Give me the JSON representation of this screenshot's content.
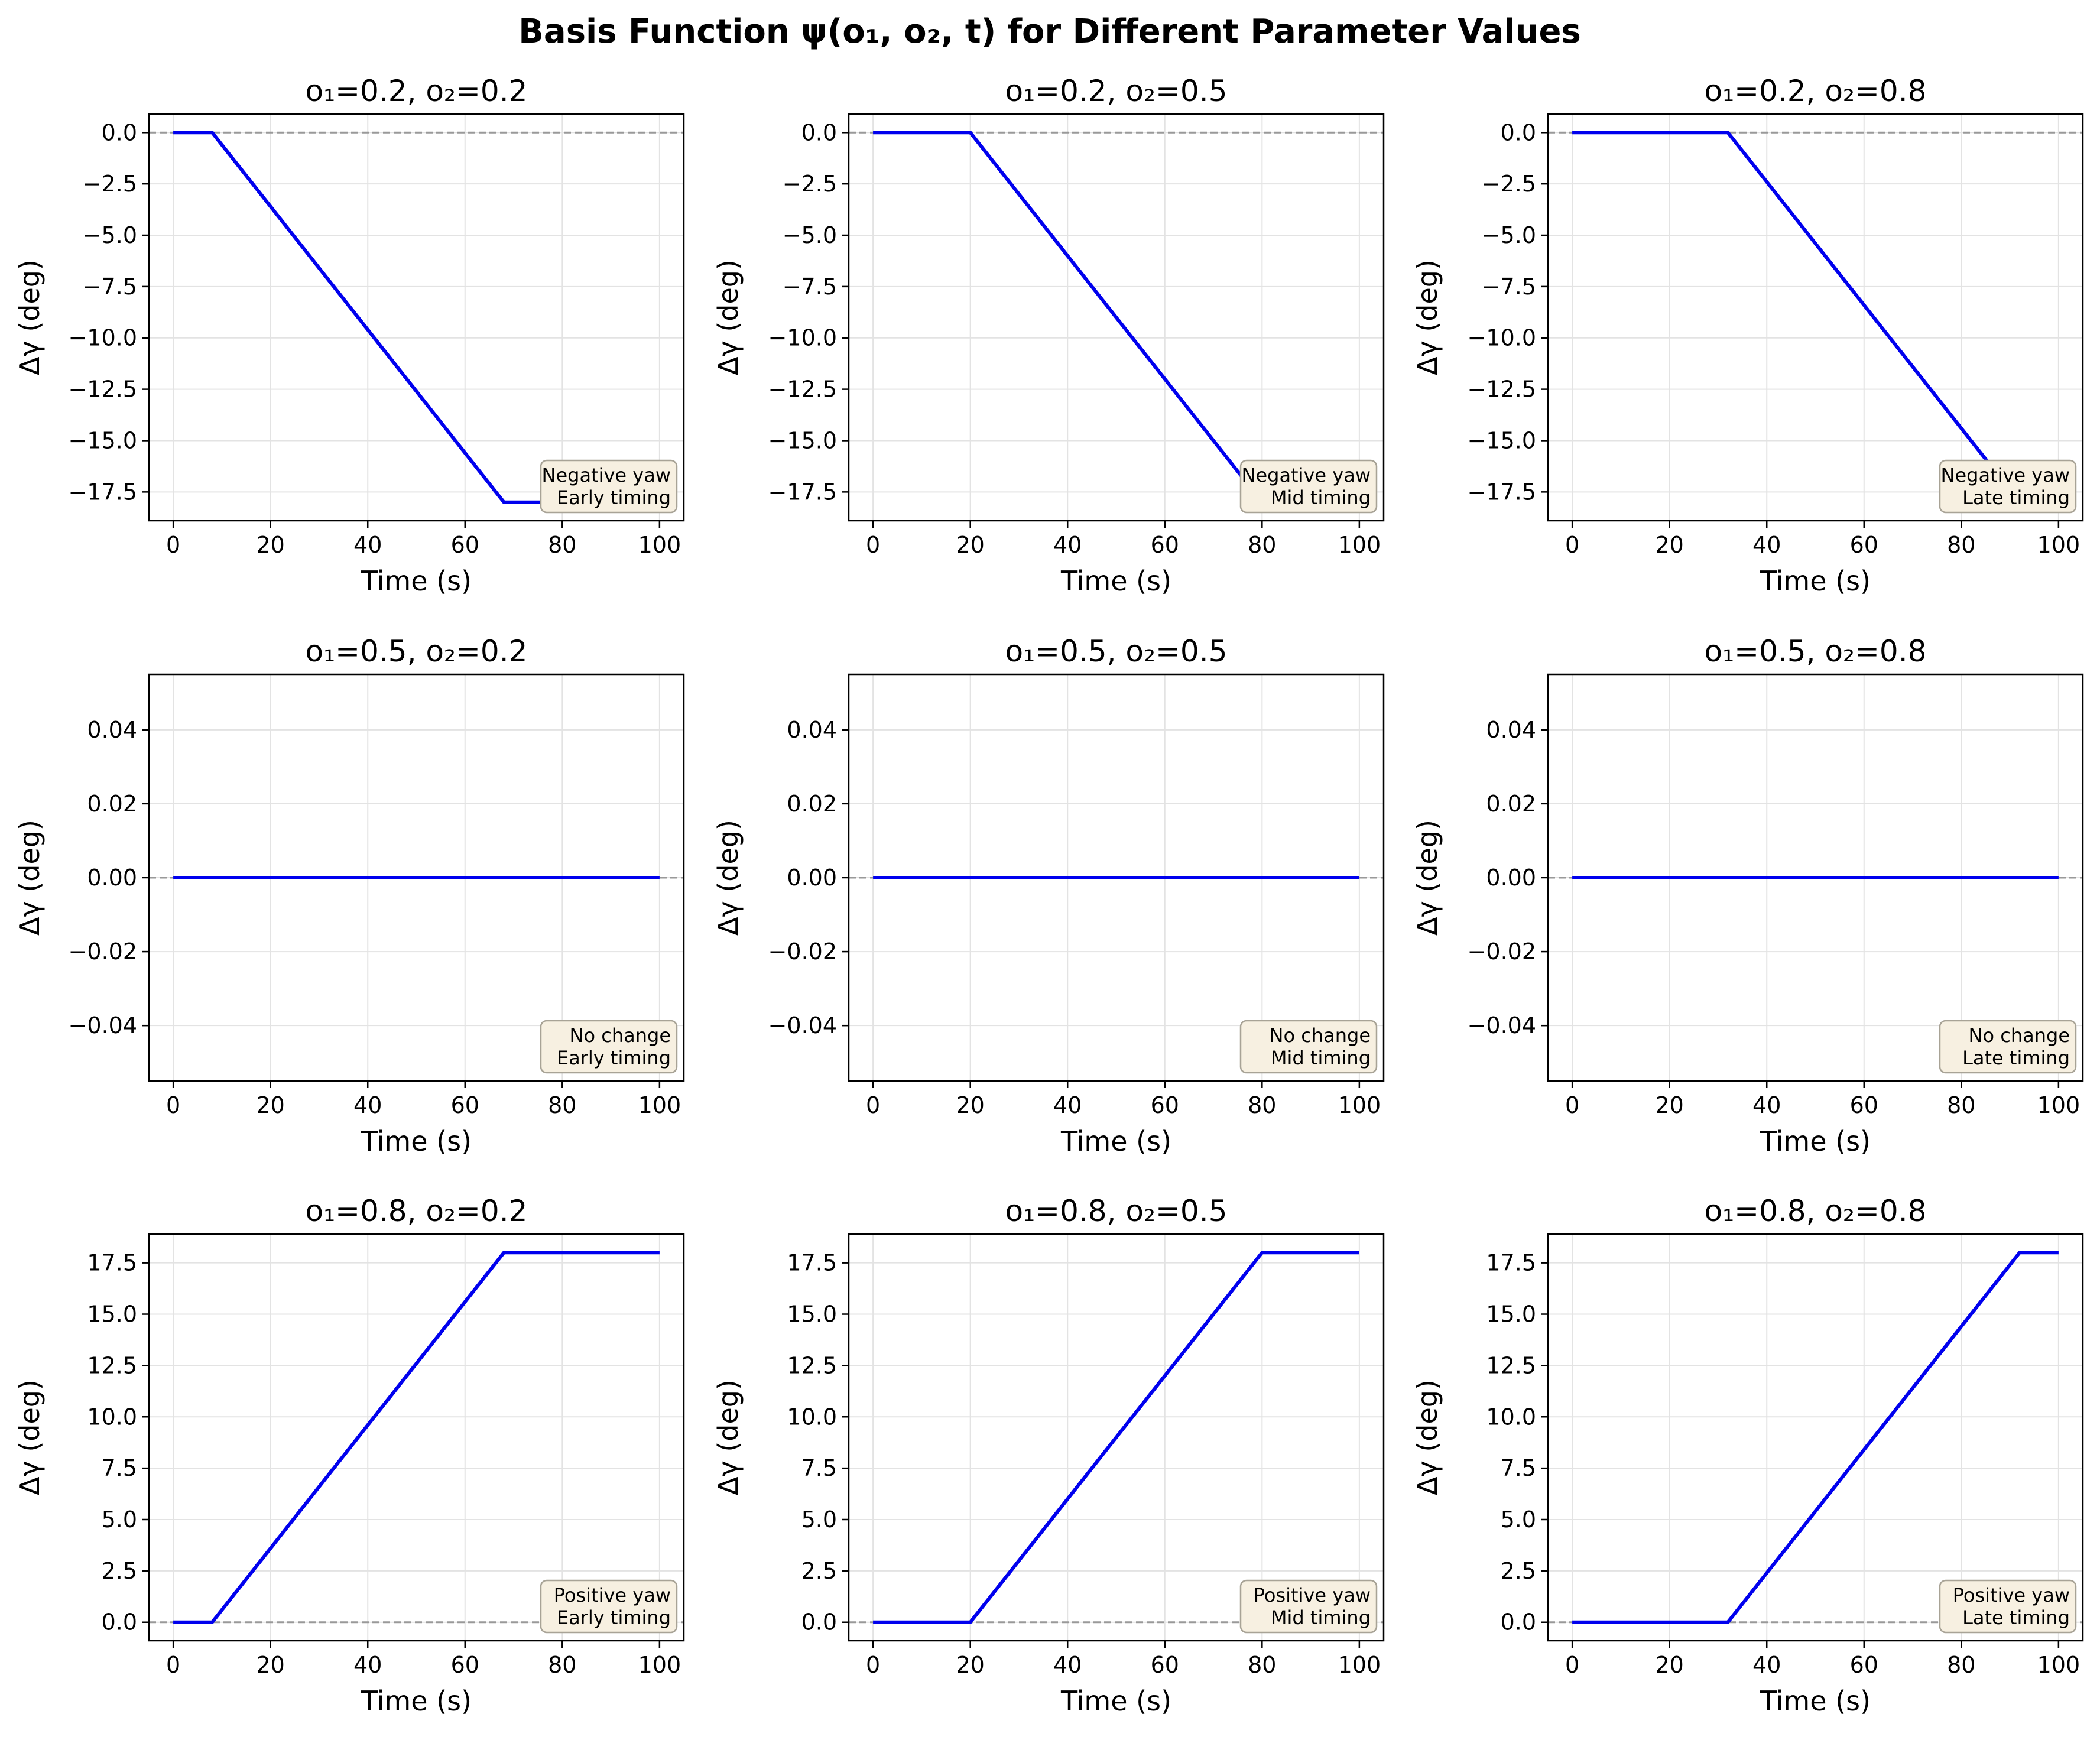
{
  "figure": {
    "title": "Basis Function ψ(o₁, o₂, t) for Different Parameter Values"
  },
  "style": {
    "line_color": "#0000ee",
    "reference_line_color": "#999999",
    "grid_color": "#e3e3e3",
    "annotation_fill": "#f7f0e1",
    "annotation_border": "#a8a396"
  },
  "chart_data": [
    {
      "type": "line",
      "title": "o₁=0.2, o₂=0.2",
      "xlabel": "Time (s)",
      "ylabel": "Δγ (deg)",
      "xlim": [
        -5,
        105
      ],
      "ylim": [
        -18.9,
        0.9
      ],
      "xticks": [
        0,
        20,
        40,
        60,
        80,
        100
      ],
      "xtick_labels": [
        "0",
        "20",
        "40",
        "60",
        "80",
        "100"
      ],
      "yticks": [
        0,
        -2.5,
        -5,
        -7.5,
        -10,
        -12.5,
        -15,
        -17.5
      ],
      "ytick_labels": [
        "0.0",
        "−2.5",
        "−5.0",
        "−7.5",
        "−10.0",
        "−12.5",
        "−15.0",
        "−17.5"
      ],
      "grid": true,
      "reference_line": 0,
      "series": [
        {
          "x": [
            0,
            8,
            68,
            100
          ],
          "y": [
            0,
            0,
            -18,
            -18
          ]
        }
      ],
      "annotation": [
        "Negative yaw",
        "Early timing"
      ]
    },
    {
      "type": "line",
      "title": "o₁=0.2, o₂=0.5",
      "xlabel": "Time (s)",
      "ylabel": "Δγ (deg)",
      "xlim": [
        -5,
        105
      ],
      "ylim": [
        -18.9,
        0.9
      ],
      "xticks": [
        0,
        20,
        40,
        60,
        80,
        100
      ],
      "xtick_labels": [
        "0",
        "20",
        "40",
        "60",
        "80",
        "100"
      ],
      "yticks": [
        0,
        -2.5,
        -5,
        -7.5,
        -10,
        -12.5,
        -15,
        -17.5
      ],
      "ytick_labels": [
        "0.0",
        "−2.5",
        "−5.0",
        "−7.5",
        "−10.0",
        "−12.5",
        "−15.0",
        "−17.5"
      ],
      "grid": true,
      "reference_line": 0,
      "series": [
        {
          "x": [
            0,
            20,
            80,
            100
          ],
          "y": [
            0,
            0,
            -18,
            -18
          ]
        }
      ],
      "annotation": [
        "Negative yaw",
        "Mid timing"
      ]
    },
    {
      "type": "line",
      "title": "o₁=0.2, o₂=0.8",
      "xlabel": "Time (s)",
      "ylabel": "Δγ (deg)",
      "xlim": [
        -5,
        105
      ],
      "ylim": [
        -18.9,
        0.9
      ],
      "xticks": [
        0,
        20,
        40,
        60,
        80,
        100
      ],
      "xtick_labels": [
        "0",
        "20",
        "40",
        "60",
        "80",
        "100"
      ],
      "yticks": [
        0,
        -2.5,
        -5,
        -7.5,
        -10,
        -12.5,
        -15,
        -17.5
      ],
      "ytick_labels": [
        "0.0",
        "−2.5",
        "−5.0",
        "−7.5",
        "−10.0",
        "−12.5",
        "−15.0",
        "−17.5"
      ],
      "grid": true,
      "reference_line": 0,
      "series": [
        {
          "x": [
            0,
            32,
            92,
            100
          ],
          "y": [
            0,
            0,
            -18,
            -18
          ]
        }
      ],
      "annotation": [
        "Negative yaw",
        "Late timing"
      ]
    },
    {
      "type": "line",
      "title": "o₁=0.5, o₂=0.2",
      "xlabel": "Time (s)",
      "ylabel": "Δγ (deg)",
      "xlim": [
        -5,
        105
      ],
      "ylim": [
        -0.055,
        0.055
      ],
      "xticks": [
        0,
        20,
        40,
        60,
        80,
        100
      ],
      "xtick_labels": [
        "0",
        "20",
        "40",
        "60",
        "80",
        "100"
      ],
      "yticks": [
        0.04,
        0.02,
        0,
        -0.02,
        -0.04
      ],
      "ytick_labels": [
        "0.04",
        "0.02",
        "0.00",
        "−0.02",
        "−0.04"
      ],
      "grid": true,
      "reference_line": 0,
      "series": [
        {
          "x": [
            0,
            100
          ],
          "y": [
            0,
            0
          ]
        }
      ],
      "annotation": [
        "No change",
        "Early timing"
      ]
    },
    {
      "type": "line",
      "title": "o₁=0.5, o₂=0.5",
      "xlabel": "Time (s)",
      "ylabel": "Δγ (deg)",
      "xlim": [
        -5,
        105
      ],
      "ylim": [
        -0.055,
        0.055
      ],
      "xticks": [
        0,
        20,
        40,
        60,
        80,
        100
      ],
      "xtick_labels": [
        "0",
        "20",
        "40",
        "60",
        "80",
        "100"
      ],
      "yticks": [
        0.04,
        0.02,
        0,
        -0.02,
        -0.04
      ],
      "ytick_labels": [
        "0.04",
        "0.02",
        "0.00",
        "−0.02",
        "−0.04"
      ],
      "grid": true,
      "reference_line": 0,
      "series": [
        {
          "x": [
            0,
            100
          ],
          "y": [
            0,
            0
          ]
        }
      ],
      "annotation": [
        "No change",
        "Mid timing"
      ]
    },
    {
      "type": "line",
      "title": "o₁=0.5, o₂=0.8",
      "xlabel": "Time (s)",
      "ylabel": "Δγ (deg)",
      "xlim": [
        -5,
        105
      ],
      "ylim": [
        -0.055,
        0.055
      ],
      "xticks": [
        0,
        20,
        40,
        60,
        80,
        100
      ],
      "xtick_labels": [
        "0",
        "20",
        "40",
        "60",
        "80",
        "100"
      ],
      "yticks": [
        0.04,
        0.02,
        0,
        -0.02,
        -0.04
      ],
      "ytick_labels": [
        "0.04",
        "0.02",
        "0.00",
        "−0.02",
        "−0.04"
      ],
      "grid": true,
      "reference_line": 0,
      "series": [
        {
          "x": [
            0,
            100
          ],
          "y": [
            0,
            0
          ]
        }
      ],
      "annotation": [
        "No change",
        "Late timing"
      ]
    },
    {
      "type": "line",
      "title": "o₁=0.8, o₂=0.2",
      "xlabel": "Time (s)",
      "ylabel": "Δγ (deg)",
      "xlim": [
        -5,
        105
      ],
      "ylim": [
        -0.9,
        18.9
      ],
      "xticks": [
        0,
        20,
        40,
        60,
        80,
        100
      ],
      "xtick_labels": [
        "0",
        "20",
        "40",
        "60",
        "80",
        "100"
      ],
      "yticks": [
        17.5,
        15,
        12.5,
        10,
        7.5,
        5,
        2.5,
        0
      ],
      "ytick_labels": [
        "17.5",
        "15.0",
        "12.5",
        "10.0",
        "7.5",
        "5.0",
        "2.5",
        "0.0"
      ],
      "grid": true,
      "reference_line": 0,
      "series": [
        {
          "x": [
            0,
            8,
            68,
            100
          ],
          "y": [
            0,
            0,
            18,
            18
          ]
        }
      ],
      "annotation": [
        "Positive yaw",
        "Early timing"
      ]
    },
    {
      "type": "line",
      "title": "o₁=0.8, o₂=0.5",
      "xlabel": "Time (s)",
      "ylabel": "Δγ (deg)",
      "xlim": [
        -5,
        105
      ],
      "ylim": [
        -0.9,
        18.9
      ],
      "xticks": [
        0,
        20,
        40,
        60,
        80,
        100
      ],
      "xtick_labels": [
        "0",
        "20",
        "40",
        "60",
        "80",
        "100"
      ],
      "yticks": [
        17.5,
        15,
        12.5,
        10,
        7.5,
        5,
        2.5,
        0
      ],
      "ytick_labels": [
        "17.5",
        "15.0",
        "12.5",
        "10.0",
        "7.5",
        "5.0",
        "2.5",
        "0.0"
      ],
      "grid": true,
      "reference_line": 0,
      "series": [
        {
          "x": [
            0,
            20,
            80,
            100
          ],
          "y": [
            0,
            0,
            18,
            18
          ]
        }
      ],
      "annotation": [
        "Positive yaw",
        "Mid timing"
      ]
    },
    {
      "type": "line",
      "title": "o₁=0.8, o₂=0.8",
      "xlabel": "Time (s)",
      "ylabel": "Δγ (deg)",
      "xlim": [
        -5,
        105
      ],
      "ylim": [
        -0.9,
        18.9
      ],
      "xticks": [
        0,
        20,
        40,
        60,
        80,
        100
      ],
      "xtick_labels": [
        "0",
        "20",
        "40",
        "60",
        "80",
        "100"
      ],
      "yticks": [
        17.5,
        15,
        12.5,
        10,
        7.5,
        5,
        2.5,
        0
      ],
      "ytick_labels": [
        "17.5",
        "15.0",
        "12.5",
        "10.0",
        "7.5",
        "5.0",
        "2.5",
        "0.0"
      ],
      "grid": true,
      "reference_line": 0,
      "series": [
        {
          "x": [
            0,
            32,
            92,
            100
          ],
          "y": [
            0,
            0,
            18,
            18
          ]
        }
      ],
      "annotation": [
        "Positive yaw",
        "Late timing"
      ]
    }
  ]
}
